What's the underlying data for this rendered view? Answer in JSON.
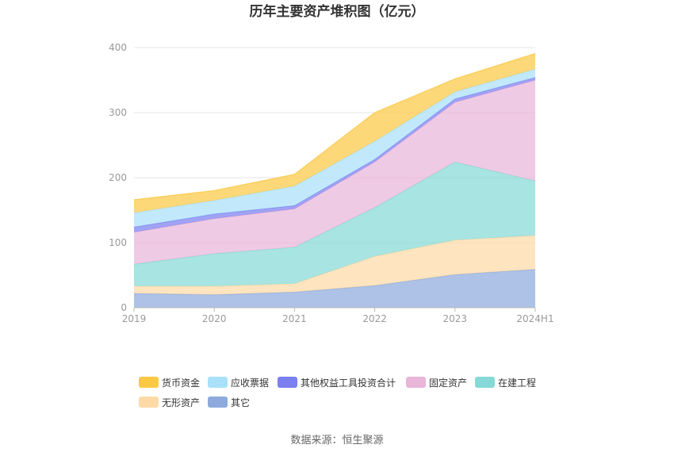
{
  "chart_data": {
    "type": "area",
    "stacked": true,
    "title": "历年主要资产堆积图（亿元）",
    "categories": [
      "2019",
      "2020",
      "2021",
      "2022",
      "2023",
      "2024H1"
    ],
    "ylim": [
      0,
      400
    ],
    "yticks": [
      0,
      100,
      200,
      300,
      400
    ],
    "grid": true,
    "legend_position": "bottom",
    "series": [
      {
        "name": "货币资金",
        "color": "#fcc945",
        "values": [
          20,
          15,
          18,
          44,
          20,
          24
        ]
      },
      {
        "name": "应收票据",
        "color": "#a9e1fa",
        "values": [
          22,
          21,
          30,
          28,
          11,
          13
        ]
      },
      {
        "name": "其他权益工具投资合计",
        "color": "#7b7ff0",
        "values": [
          8,
          7,
          5,
          4,
          5,
          4
        ]
      },
      {
        "name": "固定资产",
        "color": "#e9b5d9",
        "values": [
          49,
          54,
          59,
          70,
          92,
          155
        ]
      },
      {
        "name": "在建工程",
        "color": "#86d9d6",
        "values": [
          34,
          50,
          56,
          75,
          120,
          84
        ]
      },
      {
        "name": "无形资产",
        "color": "#fddaa6",
        "values": [
          11,
          13,
          13,
          45,
          53,
          52
        ]
      },
      {
        "name": "其它",
        "color": "#8eaadc",
        "values": [
          22,
          20,
          24,
          34,
          51,
          59
        ]
      }
    ]
  },
  "source": "数据来源：恒生聚源"
}
